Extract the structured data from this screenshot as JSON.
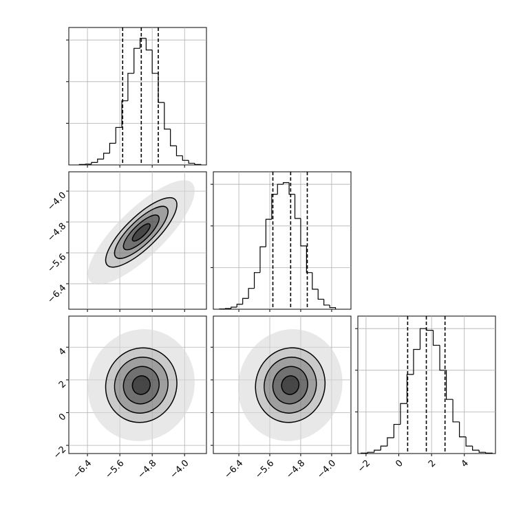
{
  "chart_data": {
    "type": "corner",
    "params": [
      {
        "lim": [
          -6.86,
          -3.46
        ],
        "ticks": [
          {
            "value": -6.4,
            "label": "−6.4"
          },
          {
            "value": -5.6,
            "label": "−5.6"
          },
          {
            "value": -4.8,
            "label": "−4.8"
          },
          {
            "value": -4.0,
            "label": "−4.0"
          }
        ]
      },
      {
        "lim": [
          -7.06,
          -3.5
        ],
        "ticks": [
          {
            "value": -6.4,
            "label": "−6.4"
          },
          {
            "value": -5.6,
            "label": "−5.6"
          },
          {
            "value": -4.8,
            "label": "−4.8"
          },
          {
            "value": -4.0,
            "label": "−4.0"
          }
        ]
      },
      {
        "lim": [
          -2.5,
          5.9
        ],
        "ticks": [
          {
            "value": -2,
            "label": "−2"
          },
          0,
          2,
          4
        ]
      }
    ],
    "hist_ylim": [
      0,
      1650
    ],
    "hist_yticks": [
      500,
      1000,
      1500
    ],
    "hists": [
      {
        "bins": [
          -6.6,
          -6.45,
          -6.3,
          -6.15,
          -6.0,
          -5.85,
          -5.7,
          -5.55,
          -5.4,
          -5.25,
          -5.1,
          -4.95,
          -4.8,
          -4.65,
          -4.5,
          -4.35,
          -4.2,
          -4.05,
          -3.9,
          -3.75,
          -3.6
        ],
        "counts": [
          5,
          10,
          30,
          70,
          140,
          260,
          450,
          770,
          1100,
          1400,
          1520,
          1380,
          1100,
          750,
          430,
          230,
          110,
          55,
          20,
          5
        ],
        "quantiles": [
          -5.53,
          -5.07,
          -4.65
        ]
      },
      {
        "bins": [
          -6.9,
          -6.75,
          -6.6,
          -6.45,
          -6.3,
          -6.15,
          -6.0,
          -5.85,
          -5.7,
          -5.55,
          -5.4,
          -5.25,
          -5.1,
          -4.95,
          -4.8,
          -4.65,
          -4.5,
          -4.35,
          -4.2,
          -4.05,
          -3.9
        ],
        "counts": [
          3,
          8,
          25,
          60,
          130,
          250,
          440,
          750,
          1080,
          1380,
          1500,
          1520,
          1380,
          1090,
          760,
          440,
          240,
          120,
          50,
          20
        ],
        "quantiles": [
          -5.52,
          -5.06,
          -4.63
        ]
      },
      {
        "bins": [
          -2.3,
          -1.9,
          -1.5,
          -1.1,
          -0.7,
          -0.3,
          0.1,
          0.5,
          0.9,
          1.3,
          1.7,
          2.1,
          2.5,
          2.9,
          3.3,
          3.7,
          4.1,
          4.5,
          4.9,
          5.3,
          5.7
        ],
        "counts": [
          5,
          15,
          40,
          90,
          190,
          350,
          600,
          950,
          1250,
          1500,
          1480,
          1300,
          1000,
          650,
          380,
          200,
          90,
          40,
          15,
          5
        ],
        "quantiles": [
          0.54,
          1.68,
          2.82
        ]
      }
    ],
    "means": [
      -5.07,
      -5.07,
      1.68
    ],
    "stds": [
      0.44,
      0.45,
      1.14
    ],
    "pairs": [
      {
        "x": 0,
        "y": 1,
        "corr": 0.8
      },
      {
        "x": 0,
        "y": 2,
        "corr": 0.05
      },
      {
        "x": 1,
        "y": 2,
        "corr": 0.05
      }
    ],
    "levels": [
      2,
      1.5,
      1,
      0.5
    ],
    "cloud_level": 3,
    "grid": true,
    "color": "#000000"
  }
}
